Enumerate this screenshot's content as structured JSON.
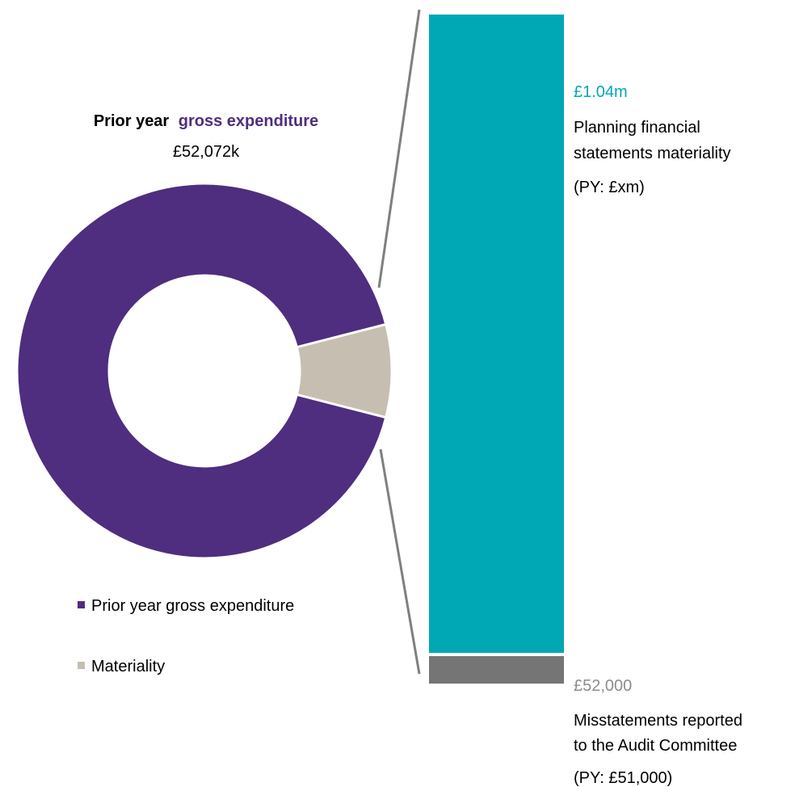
{
  "chart_data": {
    "type": "pie",
    "donut": {
      "title_part1": "Prior year",
      "title_part2": "gross expenditure",
      "subtitle": "£52,072k",
      "slices": [
        {
          "label": "Prior year gross expenditure",
          "value": 92,
          "color": "#4F2D7F"
        },
        {
          "label": "Materiality",
          "value": 8,
          "color": "#C6BEB1"
        }
      ],
      "legend": [
        {
          "label": "Prior year gross expenditure",
          "color": "#4F2D7F"
        },
        {
          "label": "Materiality",
          "color": "#C6BEB1"
        }
      ]
    },
    "bar": {
      "type": "bar",
      "stacked": true,
      "segments": [
        {
          "name": "Planning financial statements materiality",
          "value": 1040000,
          "color": "#00A7B5"
        },
        {
          "name": "Misstatements reported to the Audit Committee",
          "value": 52000,
          "color": "#757575"
        }
      ],
      "annotations": [
        {
          "value_text": "£1.04m",
          "label_lines": [
            "Planning financial",
            "statements materiality"
          ],
          "py_text": "(PY: £xm)",
          "value_color": "#00A7B5"
        },
        {
          "value_text": "£52,000",
          "label_lines": [
            "Misstatements reported",
            "to the Audit Committee"
          ],
          "py_text": "(PY: £51,000)",
          "value_color": "#8C8C8C"
        }
      ]
    }
  },
  "colors": {
    "purple": "#4F2D7F",
    "beige": "#C6BEB1",
    "teal": "#00A7B5",
    "grey": "#757575",
    "connector": "#7F7F7F"
  }
}
